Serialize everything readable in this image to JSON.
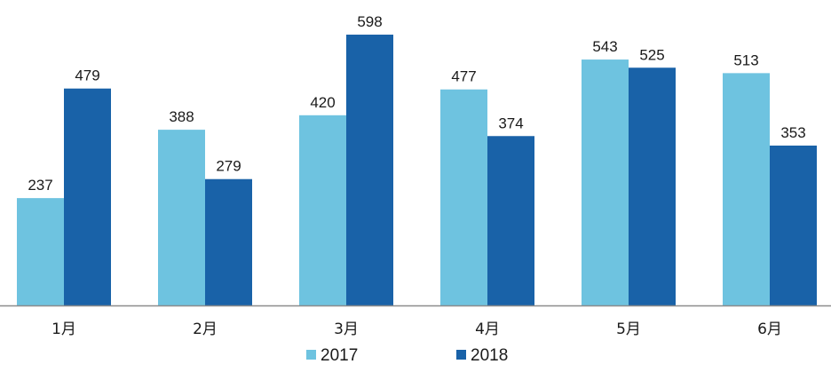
{
  "chart_data": {
    "type": "bar",
    "categories": [
      "1月",
      "2月",
      "3月",
      "4月",
      "5月",
      "6月"
    ],
    "series": [
      {
        "name": "2017",
        "values": [
          237,
          388,
          420,
          477,
          543,
          513
        ],
        "color": "#6EC3E0"
      },
      {
        "name": "2018",
        "values": [
          479,
          279,
          598,
          374,
          525,
          353
        ],
        "color": "#1962A8"
      }
    ],
    "ylim": [
      0,
      600
    ],
    "grid": false,
    "legend_position": "bottom-center",
    "data_labels": true,
    "axis_color": "#8c8c8c"
  }
}
